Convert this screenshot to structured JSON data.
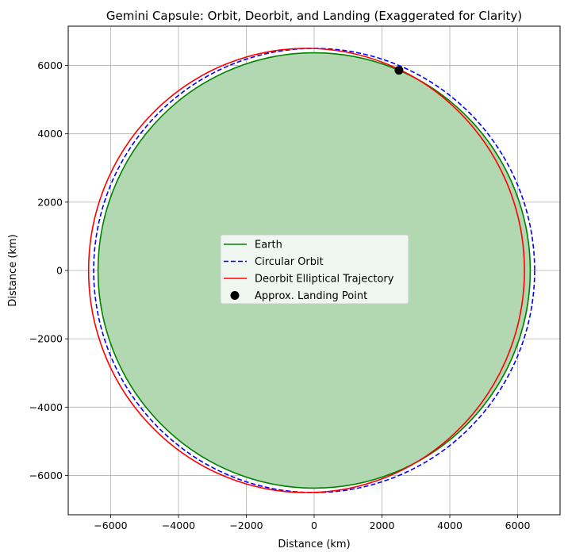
{
  "chart_data": {
    "type": "line",
    "title": "Gemini Capsule: Orbit, Deorbit, and Landing (Exaggerated for Clarity)",
    "xlabel": "Distance (km)",
    "ylabel": "Distance (km)",
    "xlim": [
      -7250,
      7250
    ],
    "ylim": [
      -7150,
      7150
    ],
    "xticks": [
      -6000,
      -4000,
      -2000,
      0,
      2000,
      4000,
      6000
    ],
    "yticks": [
      -6000,
      -4000,
      -2000,
      0,
      2000,
      4000,
      6000
    ],
    "xtick_labels": [
      "−6000",
      "−4000",
      "−2000",
      "0",
      "2000",
      "4000",
      "6000"
    ],
    "ytick_labels": [
      "−6000",
      "−4000",
      "−2000",
      "0",
      "2000",
      "4000",
      "6000"
    ],
    "grid": true,
    "legend_position": "center",
    "series": [
      {
        "name": "Earth",
        "shape": "circle",
        "center": [
          0,
          0
        ],
        "radius": 6371,
        "color": "#008000",
        "style": "solid",
        "fill": "#b2d8b2"
      },
      {
        "name": "Circular Orbit",
        "shape": "circle",
        "center": [
          0,
          0
        ],
        "radius": 6500,
        "color": "#0000ff",
        "style": "dashed"
      },
      {
        "name": "Deorbit Elliptical Trajectory",
        "shape": "ellipse",
        "center": [
          -225,
          0
        ],
        "semi_major": 6425,
        "semi_minor": 6500,
        "color": "#ff0000",
        "style": "solid"
      },
      {
        "name": "Approx. Landing Point",
        "shape": "point",
        "x": 2500,
        "y": 5860,
        "color": "#000000",
        "style": "marker"
      }
    ]
  }
}
